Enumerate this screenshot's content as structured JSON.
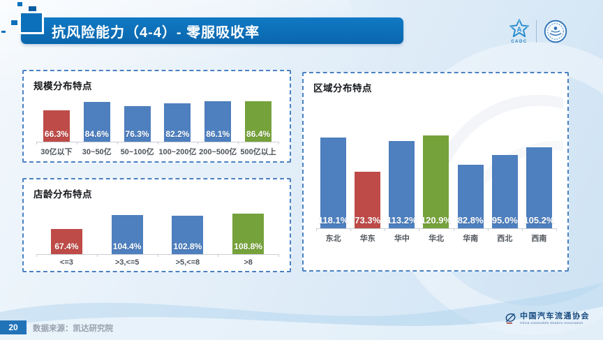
{
  "header": {
    "title": "抗风险能力（4-4）- 零服吸收率",
    "logos": {
      "cadc_caption": "CADC"
    }
  },
  "chart_data": [
    {
      "type": "bar",
      "title": "规模分布特点",
      "categories": [
        "30亿以下",
        "30~50亿",
        "50~100亿",
        "100~200亿",
        "200~500亿",
        "500亿以上"
      ],
      "values": [
        66.3,
        84.6,
        76.3,
        82.2,
        86.1,
        86.4
      ],
      "value_labels": [
        "66.3%",
        "84.6%",
        "76.3%",
        "82.2%",
        "86.1%",
        "86.4%"
      ],
      "bar_colors": [
        "#be4b48",
        "#4e7fbe",
        "#4e7fbe",
        "#4e7fbe",
        "#4e7fbe",
        "#76a23b"
      ],
      "xlabel": "",
      "ylabel": "",
      "ylim": [
        0,
        90
      ],
      "grid": false,
      "legend": false,
      "value_label_position": "inside-bottom"
    },
    {
      "type": "bar",
      "title": "店龄分布特点",
      "categories": [
        "<=3",
        ">3,<=5",
        ">5,<=8",
        ">8"
      ],
      "values": [
        67.4,
        104.4,
        102.8,
        108.8
      ],
      "value_labels": [
        "67.4%",
        "104.4%",
        "102.8%",
        "108.8%"
      ],
      "bar_colors": [
        "#be4b48",
        "#4e7fbe",
        "#4e7fbe",
        "#76a23b"
      ],
      "xlabel": "",
      "ylabel": "",
      "ylim": [
        0,
        115
      ],
      "grid": false,
      "legend": false,
      "value_label_position": "inside-bottom"
    },
    {
      "type": "bar",
      "title": "区域分布特点",
      "categories": [
        "东北",
        "华东",
        "华中",
        "华北",
        "华南",
        "西北",
        "西南"
      ],
      "values": [
        118.1,
        73.3,
        113.2,
        120.9,
        82.8,
        95.0,
        105.2
      ],
      "value_labels": [
        "118.1%",
        "73.3%",
        "113.2%",
        "120.9%",
        "82.8%",
        "95.0%",
        "105.2%"
      ],
      "bar_colors": [
        "#4e7fbe",
        "#be4b48",
        "#4e7fbe",
        "#76a23b",
        "#4e7fbe",
        "#4e7fbe",
        "#4e7fbe"
      ],
      "xlabel": "",
      "ylabel": "",
      "ylim": [
        0,
        125
      ],
      "grid": false,
      "legend": false,
      "value_label_position": "inside-bottom"
    }
  ],
  "footer": {
    "page_number": "20",
    "source": "数据来源：凯达研究院",
    "org_cn": "中国汽车流通协会",
    "org_en": "China Automobile Dealers Association"
  },
  "colors": {
    "banner_blue": "#0c70ba",
    "panel_border_blue": "#4a81c2",
    "bar_blue": "#4e7fbe",
    "bar_red": "#be4b48",
    "bar_green": "#76a23b",
    "page_number_bg": "#2173b8"
  }
}
